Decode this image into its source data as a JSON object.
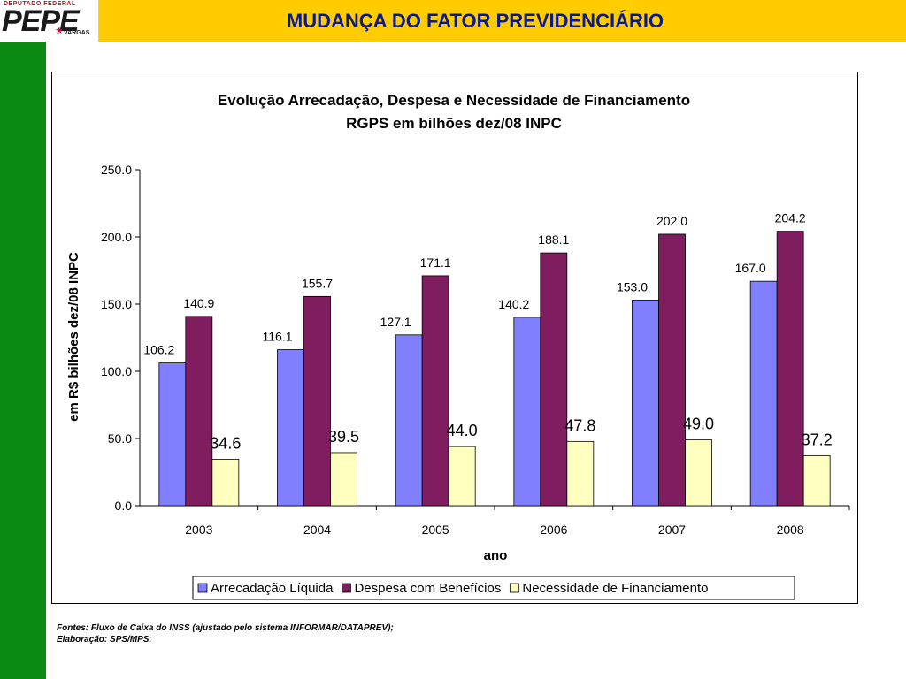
{
  "header": {
    "logo_top": "DEPUTADO FEDERAL",
    "logo_main": "PEPE",
    "logo_sub": "VARGAS",
    "title": "MUDANÇA DO FATOR PREVIDENCIÁRIO"
  },
  "colors": {
    "top_bar": "#ffcc00",
    "left_bar": "#0b8a13",
    "title": "#0a1a8c"
  },
  "chart_data": {
    "type": "bar",
    "title": "Evolução Arrecadação, Despesa e Necessidade de Financiamento",
    "subtitle": "RGPS em bilhões dez/08 INPC",
    "xlabel": "ano",
    "ylabel": "em R$ bilhões dez/08 INPC",
    "ylim": [
      0,
      250
    ],
    "yticks": [
      "0.0",
      "50.0",
      "100.0",
      "150.0",
      "200.0",
      "250.0"
    ],
    "categories": [
      "2003",
      "2004",
      "2005",
      "2006",
      "2007",
      "2008"
    ],
    "series": [
      {
        "name": "Arrecadação Líquida",
        "color": "#8080ff",
        "values": [
          106.2,
          116.1,
          127.1,
          140.2,
          153.0,
          167.0
        ],
        "labels": [
          "106.2",
          "116.1",
          "127.1",
          "140.2",
          "153.0",
          "167.0"
        ]
      },
      {
        "name": "Despesa com Benefícios",
        "color": "#7f1d5f",
        "values": [
          140.9,
          155.7,
          171.1,
          188.1,
          202.0,
          204.2
        ],
        "labels": [
          "140.9",
          "155.7",
          "171.1",
          "188.1",
          "202.0",
          "204.2"
        ]
      },
      {
        "name": "Necessidade de Financiamento",
        "color": "#ffffc0",
        "values": [
          34.6,
          39.5,
          44.0,
          47.8,
          49.0,
          37.2
        ],
        "labels": [
          "34.6",
          "39.5",
          "44.0",
          "47.8",
          "49.0",
          "37.2"
        ]
      }
    ],
    "grid": false,
    "legend_position": "bottom"
  },
  "footnote": {
    "line1": "Fontes: Fluxo de Caixa do INSS (ajustado pelo sistema INFORMAR/DATAPREV);",
    "line2": "Elaboração: SPS/MPS."
  }
}
